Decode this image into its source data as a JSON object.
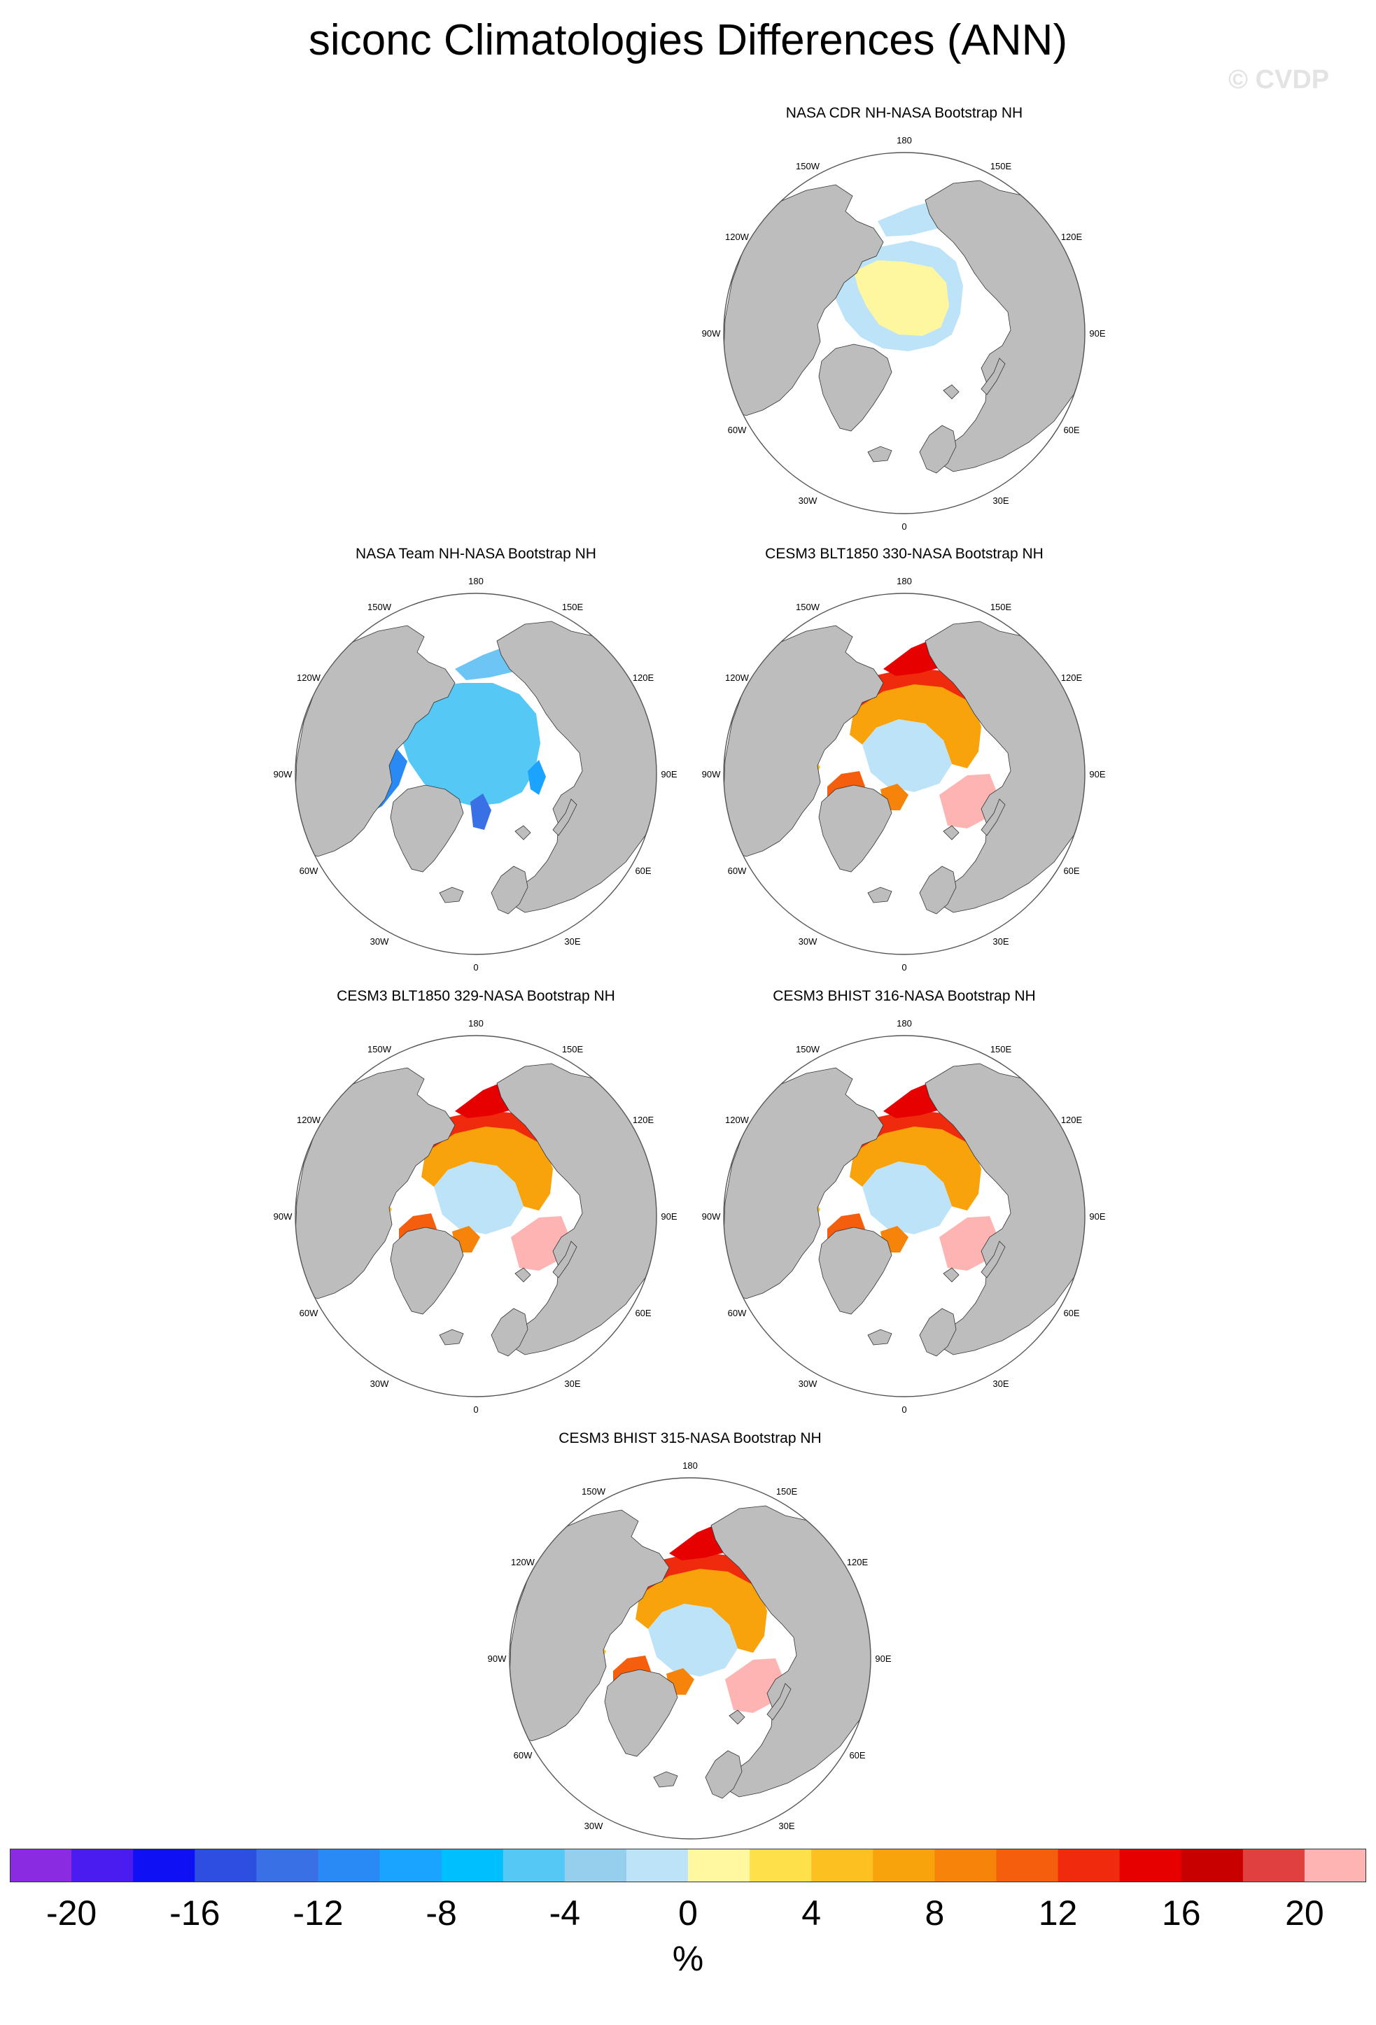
{
  "title": "siconc Climatologies Differences (ANN)",
  "watermark": "© CVDP",
  "longitude_labels": [
    "180",
    "150E",
    "120E",
    "90E",
    "60E",
    "30E",
    "0",
    "30W",
    "60W",
    "90W",
    "120W",
    "150W"
  ],
  "panels": [
    {
      "title": "NASA CDR NH-NASA Bootstrap NH",
      "pattern": "cdr"
    },
    {
      "title": "NASA Team NH-NASA Bootstrap NH",
      "pattern": "team"
    },
    {
      "title": "CESM3 BLT1850 330-NASA Bootstrap NH",
      "pattern": "model"
    },
    {
      "title": "CESM3 BLT1850 329-NASA Bootstrap NH",
      "pattern": "model"
    },
    {
      "title": "CESM3 BHIST 316-NASA Bootstrap NH",
      "pattern": "model"
    },
    {
      "title": "CESM3 BHIST 315-NASA Bootstrap NH",
      "pattern": "model"
    }
  ],
  "colorbar": {
    "colors": [
      "#8a2be2",
      "#4b1cf0",
      "#1010f5",
      "#2d4ee0",
      "#3a70e6",
      "#2a8af5",
      "#1aa3ff",
      "#00bfff",
      "#55c8f5",
      "#96cfee",
      "#bde3f8",
      "#fff8a0",
      "#fde04a",
      "#fcc120",
      "#f8a20c",
      "#f6830a",
      "#f45e0c",
      "#f02a0c",
      "#e60000",
      "#c80000",
      "#e04040",
      "#ffb4b4"
    ],
    "tick_labels": [
      "-20",
      "-16",
      "-12",
      "-8",
      "-4",
      "0",
      "4",
      "8",
      "12",
      "16",
      "20"
    ],
    "units": "%"
  }
}
